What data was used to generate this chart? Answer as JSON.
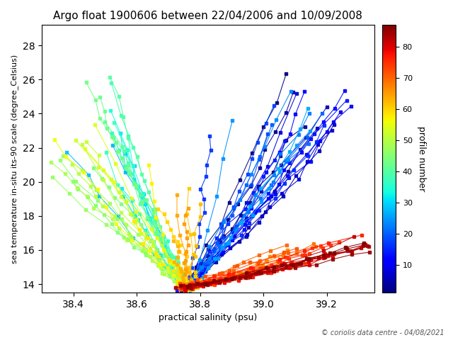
{
  "title": "Argo float 1900606 between 22/04/2006 and 10/09/2008",
  "xlabel": "practical salinity (psu)",
  "ylabel": "sea temperature in-situ its-90 scale (degree_Celsius)",
  "colorbar_label": "profile number",
  "copyright": "© coriolis data centre - 04/08/2021",
  "xlim": [
    38.3,
    39.35
  ],
  "ylim": [
    13.5,
    29.2
  ],
  "xticks": [
    38.4,
    38.6,
    38.8,
    39.0,
    39.2
  ],
  "yticks": [
    14,
    16,
    18,
    20,
    22,
    24,
    26,
    28
  ],
  "colorbar_ticks": [
    10,
    20,
    30,
    40,
    50,
    60,
    70,
    80
  ],
  "n_profiles": 87,
  "random_seed": 7,
  "cmap": "jet"
}
